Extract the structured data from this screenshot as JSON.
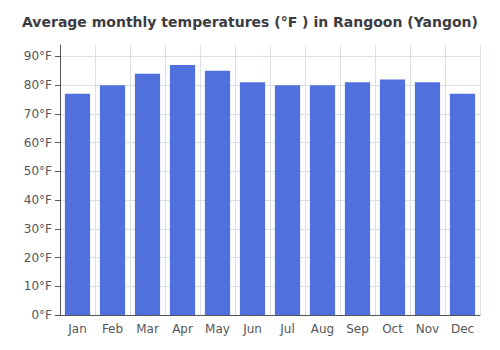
{
  "chart_data": {
    "type": "bar",
    "title": "Average monthly temperatures (°F ) in Rangoon (Yangon)",
    "categories": [
      "Jan",
      "Feb",
      "Mar",
      "Apr",
      "May",
      "Jun",
      "Jul",
      "Aug",
      "Sep",
      "Oct",
      "Nov",
      "Dec"
    ],
    "values": [
      77,
      80,
      84,
      87,
      85,
      81,
      80,
      80,
      81,
      82,
      81,
      77
    ],
    "ylim": [
      0,
      94
    ],
    "yticks": [
      {
        "value": 0,
        "label": "0°F"
      },
      {
        "value": 10,
        "label": "10°F"
      },
      {
        "value": 20,
        "label": "20°F"
      },
      {
        "value": 30,
        "label": "30°F"
      },
      {
        "value": 40,
        "label": "40°F"
      },
      {
        "value": 50,
        "label": "50°F"
      },
      {
        "value": 60,
        "label": "60°F"
      },
      {
        "value": 70,
        "label": "70°F"
      },
      {
        "value": 80,
        "label": "80°F"
      },
      {
        "value": 90,
        "label": "90°F"
      }
    ],
    "grid": true
  }
}
